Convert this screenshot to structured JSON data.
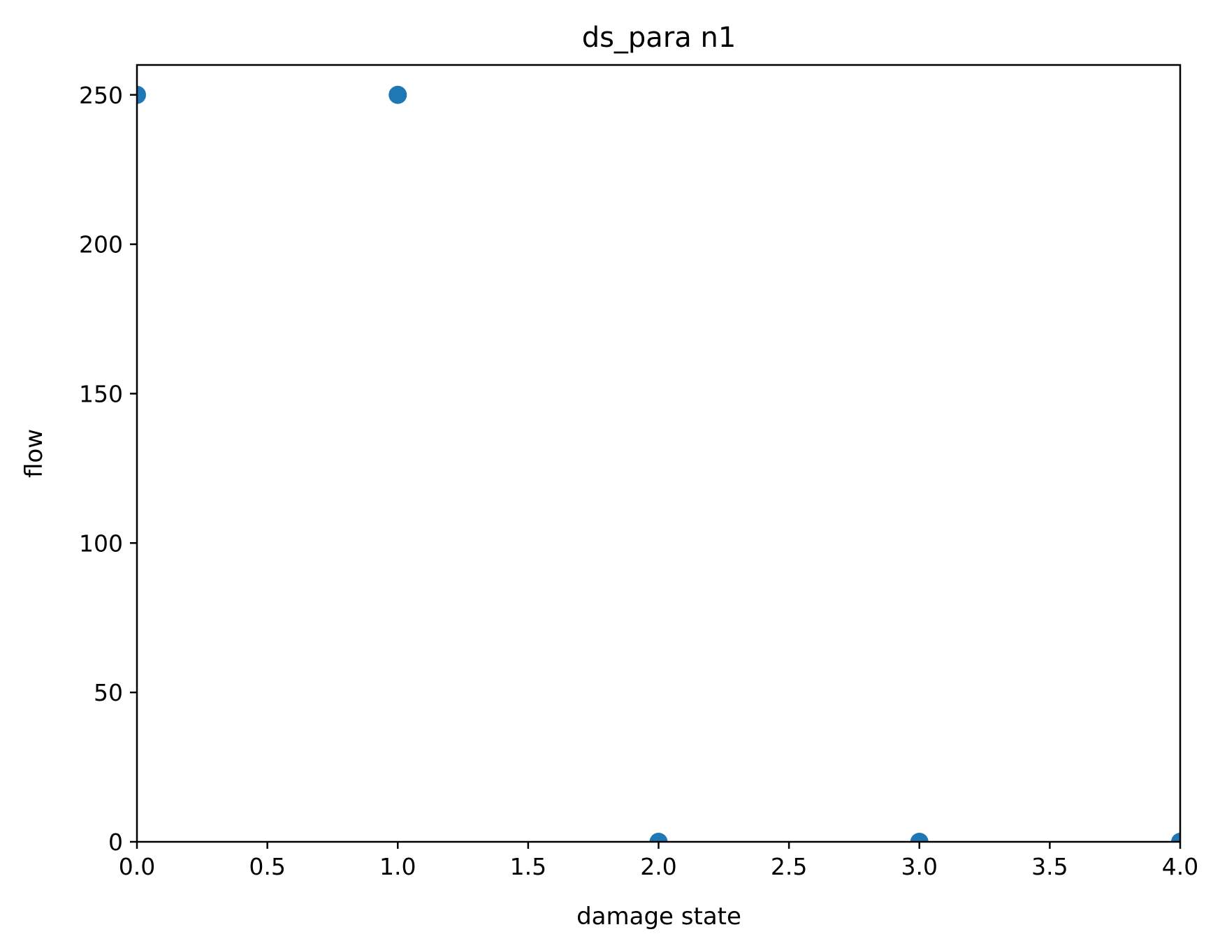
{
  "chart_data": {
    "type": "scatter",
    "title": "ds_para n1",
    "xlabel": "damage state",
    "ylabel": "flow",
    "xlim": [
      0.0,
      4.0
    ],
    "ylim": [
      0,
      260
    ],
    "xticks": [
      "0.0",
      "0.5",
      "1.0",
      "1.5",
      "2.0",
      "2.5",
      "3.0",
      "3.5",
      "4.0"
    ],
    "yticks": [
      "0",
      "50",
      "100",
      "150",
      "200",
      "250"
    ],
    "grid": false,
    "legend": "none",
    "point_color": "#1f77b4",
    "series": [
      {
        "points": [
          {
            "x": 0,
            "y": 250
          },
          {
            "x": 1,
            "y": 250
          },
          {
            "x": 2,
            "y": 0
          },
          {
            "x": 3,
            "y": 0
          },
          {
            "x": 4,
            "y": 0
          }
        ]
      }
    ]
  }
}
